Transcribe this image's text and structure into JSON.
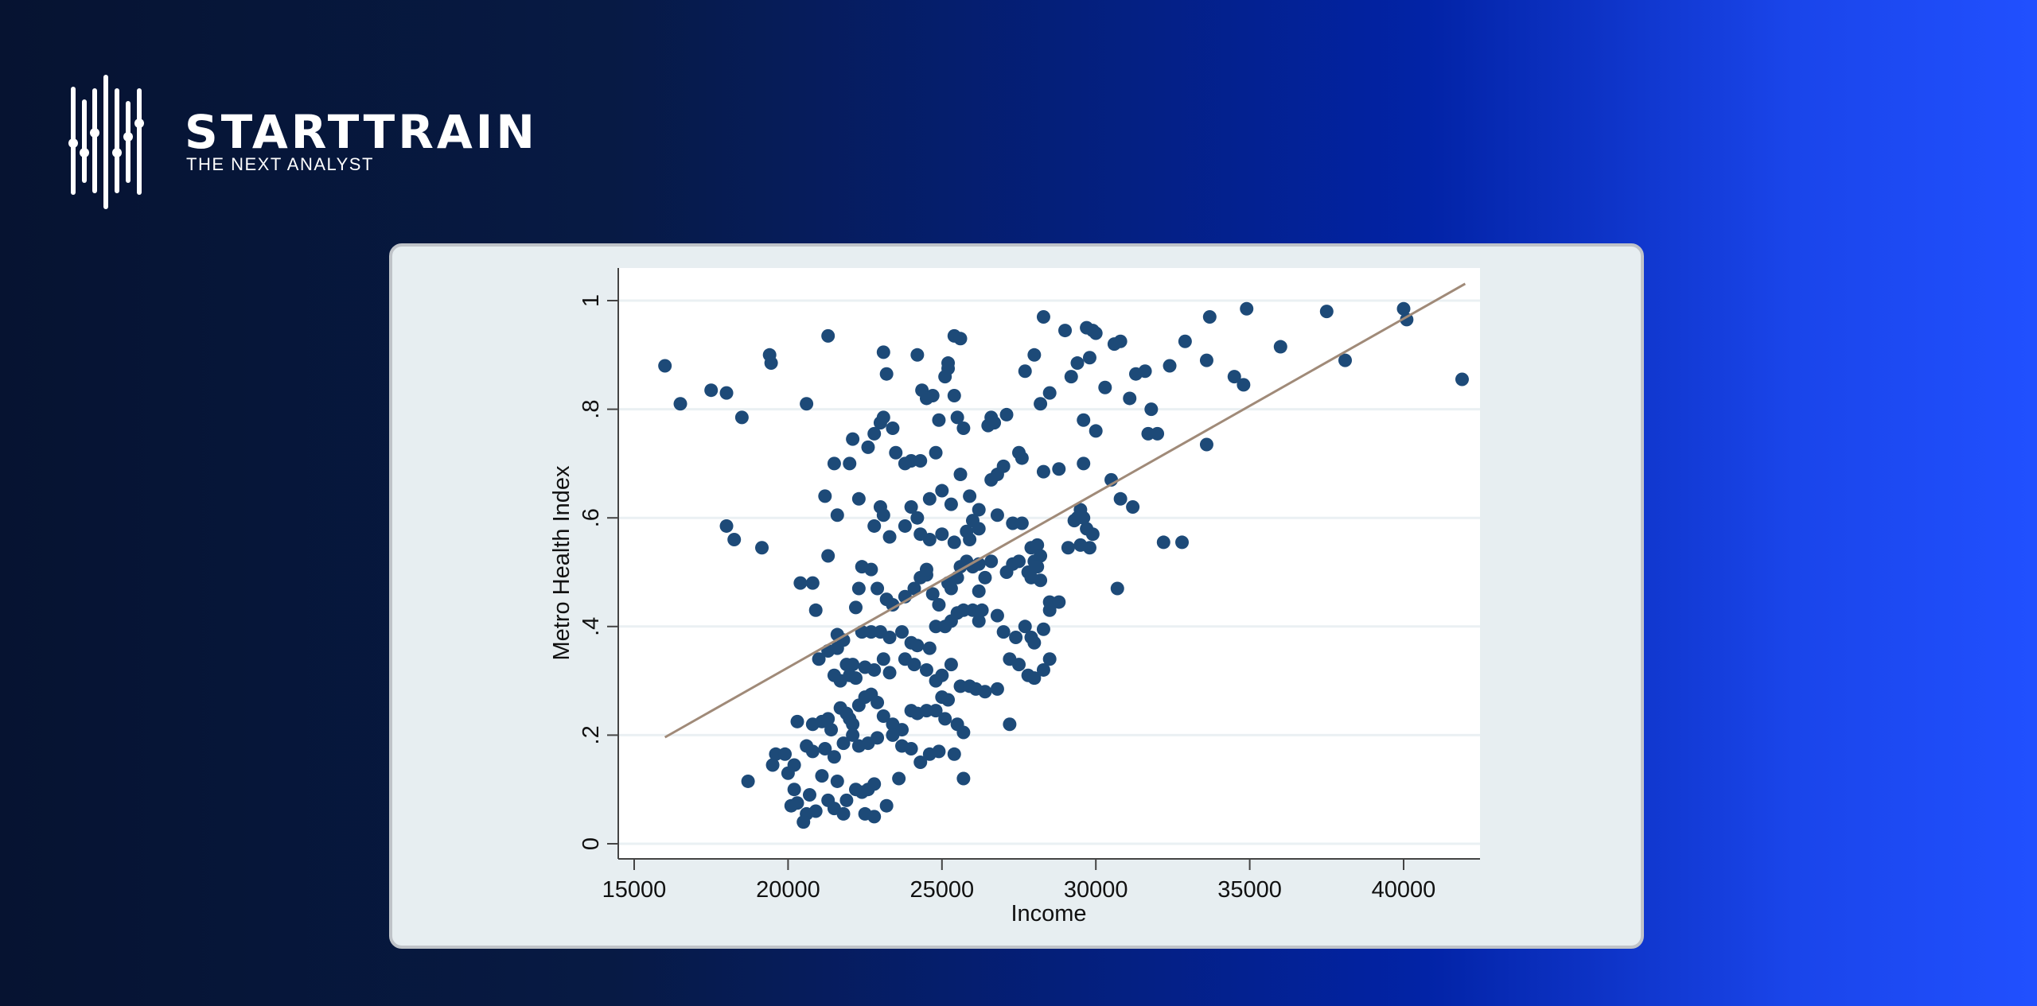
{
  "brand": {
    "name": "STARTTRAIN",
    "tagline": "THE NEXT ANALYST",
    "icon": "sound-wave-bars-icon"
  },
  "colors": {
    "bg_left": "#061331",
    "bg_right": "#2150ff",
    "card_bg": "#e7eef1",
    "plot_bg": "#ffffff",
    "dot": "#1d4a78",
    "fit_line": "#a08a78",
    "grid": "#eaf0f3"
  },
  "chart_data": {
    "type": "scatter",
    "title": "",
    "xlabel": "Income",
    "ylabel": "Metro Health Index",
    "xlim": [
      14600,
      42400
    ],
    "ylim": [
      -0.03,
      1.06
    ],
    "x_ticks": [
      15000,
      20000,
      25000,
      30000,
      35000,
      40000
    ],
    "x_tick_labels": [
      "15000",
      "20000",
      "25000",
      "30000",
      "35000",
      "40000"
    ],
    "y_ticks": [
      0,
      0.2,
      0.4,
      0.6,
      0.8,
      1
    ],
    "y_tick_labels": [
      "0",
      ".2",
      ".4",
      ".6",
      ".8",
      "1"
    ],
    "grid": {
      "horizontal": true,
      "vertical": false
    },
    "legend": null,
    "fit_line": {
      "type": "linear",
      "x": [
        16000,
        42000
      ],
      "y": [
        0.196,
        1.031
      ]
    },
    "series": [
      {
        "name": "observations",
        "points": [
          [
            16000,
            0.88
          ],
          [
            16500,
            0.81
          ],
          [
            17500,
            0.835
          ],
          [
            18000,
            0.83
          ],
          [
            18500,
            0.785
          ],
          [
            19400,
            0.9
          ],
          [
            19450,
            0.885
          ],
          [
            20600,
            0.81
          ],
          [
            21300,
            0.935
          ],
          [
            18000,
            0.585
          ],
          [
            18250,
            0.56
          ],
          [
            19150,
            0.545
          ],
          [
            18700,
            0.115
          ],
          [
            23100,
            0.905
          ],
          [
            23200,
            0.865
          ],
          [
            24200,
            0.9
          ],
          [
            24700,
            0.825
          ],
          [
            24350,
            0.835
          ],
          [
            24500,
            0.82
          ],
          [
            25100,
            0.86
          ],
          [
            25200,
            0.875
          ],
          [
            25400,
            0.935
          ],
          [
            25600,
            0.93
          ],
          [
            25200,
            0.885
          ],
          [
            25400,
            0.825
          ],
          [
            24900,
            0.78
          ],
          [
            25700,
            0.765
          ],
          [
            25500,
            0.785
          ],
          [
            26500,
            0.77
          ],
          [
            26600,
            0.785
          ],
          [
            26700,
            0.775
          ],
          [
            22100,
            0.745
          ],
          [
            22600,
            0.73
          ],
          [
            22800,
            0.755
          ],
          [
            23000,
            0.775
          ],
          [
            23100,
            0.785
          ],
          [
            23400,
            0.765
          ],
          [
            23500,
            0.72
          ],
          [
            21500,
            0.7
          ],
          [
            22000,
            0.7
          ],
          [
            24000,
            0.705
          ],
          [
            24300,
            0.705
          ],
          [
            24800,
            0.72
          ],
          [
            23800,
            0.7
          ],
          [
            21200,
            0.64
          ],
          [
            21600,
            0.605
          ],
          [
            22300,
            0.635
          ],
          [
            22800,
            0.585
          ],
          [
            23000,
            0.62
          ],
          [
            23100,
            0.605
          ],
          [
            23300,
            0.565
          ],
          [
            23800,
            0.585
          ],
          [
            24000,
            0.62
          ],
          [
            24200,
            0.6
          ],
          [
            24600,
            0.635
          ],
          [
            25000,
            0.65
          ],
          [
            25300,
            0.625
          ],
          [
            25600,
            0.68
          ],
          [
            25900,
            0.64
          ],
          [
            26200,
            0.615
          ],
          [
            26600,
            0.67
          ],
          [
            26800,
            0.68
          ],
          [
            27000,
            0.695
          ],
          [
            27500,
            0.72
          ],
          [
            27600,
            0.71
          ],
          [
            28300,
            0.685
          ],
          [
            28800,
            0.69
          ],
          [
            29600,
            0.7
          ],
          [
            27100,
            0.79
          ],
          [
            27700,
            0.87
          ],
          [
            28000,
            0.9
          ],
          [
            28200,
            0.81
          ],
          [
            28500,
            0.83
          ],
          [
            29200,
            0.86
          ],
          [
            29000,
            0.945
          ],
          [
            28300,
            0.97
          ],
          [
            29700,
            0.95
          ],
          [
            29900,
            0.945
          ],
          [
            30000,
            0.94
          ],
          [
            29400,
            0.885
          ],
          [
            29800,
            0.895
          ],
          [
            30300,
            0.84
          ],
          [
            29600,
            0.78
          ],
          [
            30000,
            0.76
          ],
          [
            30600,
            0.92
          ],
          [
            30800,
            0.925
          ],
          [
            31100,
            0.82
          ],
          [
            31300,
            0.865
          ],
          [
            31600,
            0.87
          ],
          [
            31800,
            0.8
          ],
          [
            31700,
            0.755
          ],
          [
            32000,
            0.755
          ],
          [
            32400,
            0.88
          ],
          [
            32900,
            0.925
          ],
          [
            33600,
            0.89
          ],
          [
            33700,
            0.97
          ],
          [
            34500,
            0.86
          ],
          [
            34800,
            0.845
          ],
          [
            34900,
            0.985
          ],
          [
            36000,
            0.915
          ],
          [
            37500,
            0.98
          ],
          [
            38100,
            0.89
          ],
          [
            40000,
            0.985
          ],
          [
            40100,
            0.965
          ],
          [
            41900,
            0.855
          ],
          [
            30500,
            0.67
          ],
          [
            30800,
            0.635
          ],
          [
            31200,
            0.62
          ],
          [
            30700,
            0.47
          ],
          [
            32200,
            0.555
          ],
          [
            32800,
            0.555
          ],
          [
            33600,
            0.735
          ],
          [
            26000,
            0.595
          ],
          [
            25800,
            0.575
          ],
          [
            25900,
            0.56
          ],
          [
            26200,
            0.58
          ],
          [
            25400,
            0.555
          ],
          [
            25000,
            0.57
          ],
          [
            24600,
            0.56
          ],
          [
            24300,
            0.57
          ],
          [
            26800,
            0.605
          ],
          [
            27300,
            0.59
          ],
          [
            27600,
            0.59
          ],
          [
            27900,
            0.545
          ],
          [
            28100,
            0.55
          ],
          [
            28200,
            0.53
          ],
          [
            29300,
            0.595
          ],
          [
            29500,
            0.615
          ],
          [
            29700,
            0.58
          ],
          [
            29900,
            0.57
          ],
          [
            29500,
            0.55
          ],
          [
            29100,
            0.545
          ],
          [
            29800,
            0.545
          ],
          [
            29400,
            0.6
          ],
          [
            29600,
            0.6
          ],
          [
            20400,
            0.48
          ],
          [
            20800,
            0.48
          ],
          [
            20900,
            0.43
          ],
          [
            21300,
            0.53
          ],
          [
            21600,
            0.385
          ],
          [
            21800,
            0.375
          ],
          [
            22200,
            0.435
          ],
          [
            22300,
            0.47
          ],
          [
            22400,
            0.51
          ],
          [
            22700,
            0.505
          ],
          [
            22900,
            0.47
          ],
          [
            23200,
            0.45
          ],
          [
            23400,
            0.44
          ],
          [
            23800,
            0.455
          ],
          [
            24100,
            0.47
          ],
          [
            24300,
            0.49
          ],
          [
            24500,
            0.495
          ],
          [
            24500,
            0.505
          ],
          [
            24700,
            0.46
          ],
          [
            24900,
            0.44
          ],
          [
            25200,
            0.48
          ],
          [
            25300,
            0.47
          ],
          [
            25500,
            0.49
          ],
          [
            25600,
            0.51
          ],
          [
            25800,
            0.52
          ],
          [
            26000,
            0.51
          ],
          [
            26200,
            0.515
          ],
          [
            26400,
            0.49
          ],
          [
            26600,
            0.52
          ],
          [
            27100,
            0.5
          ],
          [
            27300,
            0.515
          ],
          [
            27500,
            0.52
          ],
          [
            27800,
            0.5
          ],
          [
            28000,
            0.52
          ],
          [
            28100,
            0.51
          ],
          [
            27900,
            0.49
          ],
          [
            28200,
            0.485
          ],
          [
            28500,
            0.445
          ],
          [
            28800,
            0.445
          ],
          [
            26200,
            0.465
          ],
          [
            26800,
            0.42
          ],
          [
            27000,
            0.39
          ],
          [
            27400,
            0.38
          ],
          [
            27700,
            0.4
          ],
          [
            27900,
            0.38
          ],
          [
            28000,
            0.37
          ],
          [
            28300,
            0.395
          ],
          [
            28500,
            0.43
          ],
          [
            21000,
            0.34
          ],
          [
            21300,
            0.355
          ],
          [
            21600,
            0.36
          ],
          [
            21900,
            0.33
          ],
          [
            22100,
            0.33
          ],
          [
            22400,
            0.39
          ],
          [
            22700,
            0.39
          ],
          [
            23000,
            0.39
          ],
          [
            23300,
            0.38
          ],
          [
            23700,
            0.39
          ],
          [
            24000,
            0.37
          ],
          [
            24200,
            0.365
          ],
          [
            24600,
            0.36
          ],
          [
            24800,
            0.4
          ],
          [
            25100,
            0.4
          ],
          [
            25300,
            0.41
          ],
          [
            25500,
            0.425
          ],
          [
            25700,
            0.43
          ],
          [
            26000,
            0.43
          ],
          [
            26200,
            0.41
          ],
          [
            26300,
            0.43
          ],
          [
            27200,
            0.34
          ],
          [
            27500,
            0.33
          ],
          [
            27800,
            0.31
          ],
          [
            28000,
            0.305
          ],
          [
            28300,
            0.32
          ],
          [
            28500,
            0.34
          ],
          [
            21500,
            0.31
          ],
          [
            21700,
            0.3
          ],
          [
            22000,
            0.31
          ],
          [
            22200,
            0.305
          ],
          [
            22500,
            0.325
          ],
          [
            22800,
            0.32
          ],
          [
            23100,
            0.34
          ],
          [
            23300,
            0.315
          ],
          [
            23800,
            0.34
          ],
          [
            24100,
            0.33
          ],
          [
            24500,
            0.32
          ],
          [
            24800,
            0.3
          ],
          [
            25000,
            0.31
          ],
          [
            25300,
            0.33
          ],
          [
            25600,
            0.29
          ],
          [
            25900,
            0.29
          ],
          [
            26100,
            0.285
          ],
          [
            26400,
            0.28
          ],
          [
            26800,
            0.285
          ],
          [
            27200,
            0.22
          ],
          [
            20300,
            0.225
          ],
          [
            20800,
            0.22
          ],
          [
            21100,
            0.225
          ],
          [
            21300,
            0.23
          ],
          [
            21400,
            0.21
          ],
          [
            21700,
            0.25
          ],
          [
            21900,
            0.24
          ],
          [
            22000,
            0.23
          ],
          [
            22100,
            0.22
          ],
          [
            22300,
            0.255
          ],
          [
            22500,
            0.27
          ],
          [
            22700,
            0.275
          ],
          [
            22900,
            0.26
          ],
          [
            23100,
            0.235
          ],
          [
            23400,
            0.22
          ],
          [
            23700,
            0.21
          ],
          [
            24000,
            0.245
          ],
          [
            24200,
            0.24
          ],
          [
            24500,
            0.245
          ],
          [
            24800,
            0.245
          ],
          [
            25100,
            0.23
          ],
          [
            25500,
            0.22
          ],
          [
            25700,
            0.205
          ],
          [
            25000,
            0.27
          ],
          [
            25200,
            0.265
          ],
          [
            19600,
            0.165
          ],
          [
            19900,
            0.165
          ],
          [
            20200,
            0.145
          ],
          [
            20600,
            0.18
          ],
          [
            20800,
            0.17
          ],
          [
            21200,
            0.175
          ],
          [
            21500,
            0.16
          ],
          [
            21800,
            0.185
          ],
          [
            22100,
            0.2
          ],
          [
            22300,
            0.18
          ],
          [
            22600,
            0.185
          ],
          [
            22900,
            0.195
          ],
          [
            23400,
            0.2
          ],
          [
            23700,
            0.18
          ],
          [
            24000,
            0.175
          ],
          [
            24300,
            0.15
          ],
          [
            24600,
            0.165
          ],
          [
            24900,
            0.17
          ],
          [
            25400,
            0.165
          ],
          [
            25700,
            0.12
          ],
          [
            20100,
            0.07
          ],
          [
            20300,
            0.075
          ],
          [
            20600,
            0.055
          ],
          [
            20900,
            0.06
          ],
          [
            21300,
            0.08
          ],
          [
            21500,
            0.065
          ],
          [
            21800,
            0.055
          ],
          [
            21900,
            0.08
          ],
          [
            22200,
            0.1
          ],
          [
            22400,
            0.095
          ],
          [
            22600,
            0.1
          ],
          [
            22800,
            0.11
          ],
          [
            22500,
            0.055
          ],
          [
            22800,
            0.05
          ],
          [
            23200,
            0.07
          ],
          [
            23600,
            0.12
          ],
          [
            20200,
            0.1
          ],
          [
            20700,
            0.09
          ],
          [
            19500,
            0.145
          ],
          [
            20000,
            0.13
          ],
          [
            20500,
            0.04
          ],
          [
            21100,
            0.125
          ],
          [
            21600,
            0.115
          ]
        ]
      }
    ]
  }
}
